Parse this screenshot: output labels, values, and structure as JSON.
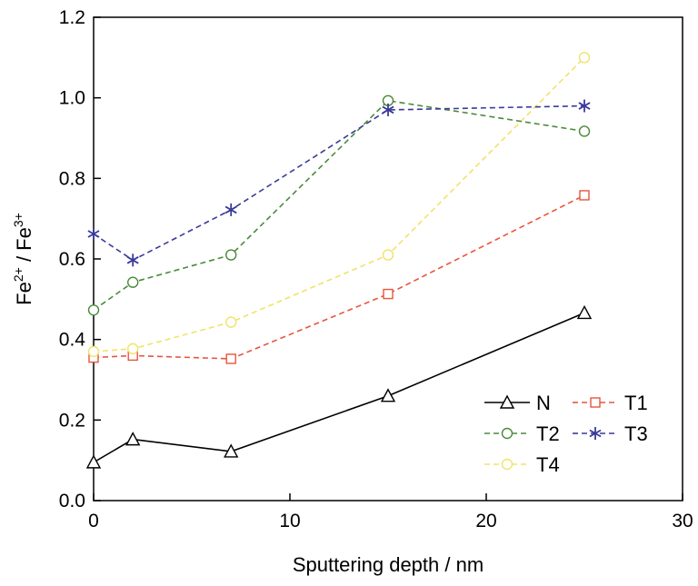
{
  "chart_data": {
    "type": "line",
    "title": "",
    "xlabel": "Sputtering depth / nm",
    "ylabel": {
      "base1": "Fe",
      "sup1": "2+",
      "sep": " / ",
      "base2": "Fe",
      "sup2": "3+"
    },
    "xlim": [
      0,
      30
    ],
    "ylim": [
      0.0,
      1.2
    ],
    "xticks": [
      0,
      10,
      20,
      30
    ],
    "xtick_labels": [
      "0",
      "10",
      "20",
      "30"
    ],
    "yticks": [
      0.0,
      0.2,
      0.4,
      0.6,
      0.8,
      1.0,
      1.2
    ],
    "ytick_labels": [
      "0.0",
      "0.2",
      "0.4",
      "0.6",
      "0.8",
      "1.0",
      "1.2"
    ],
    "grid": false,
    "legend_position": "bottom-right",
    "x": [
      0,
      2,
      7,
      15,
      25
    ],
    "series": [
      {
        "name": "N",
        "values": [
          0.095,
          0.152,
          0.122,
          0.26,
          0.466
        ],
        "color": "#000000",
        "marker": "triangle",
        "dash": "solid"
      },
      {
        "name": "T1",
        "values": [
          0.355,
          0.36,
          0.352,
          0.513,
          0.758
        ],
        "color": "#e8553f",
        "marker": "square",
        "dash": "dashed"
      },
      {
        "name": "T2",
        "values": [
          0.473,
          0.542,
          0.61,
          0.993,
          0.917
        ],
        "color": "#4a8a3a",
        "marker": "circle",
        "dash": "dashed"
      },
      {
        "name": "T3",
        "values": [
          0.662,
          0.597,
          0.722,
          0.97,
          0.98
        ],
        "color": "#3a3a9a",
        "marker": "asterisk",
        "dash": "dashed"
      },
      {
        "name": "T4",
        "values": [
          0.37,
          0.377,
          0.443,
          0.61,
          1.1
        ],
        "color": "#f2e26a",
        "marker": "circle",
        "dash": "dashed"
      }
    ]
  }
}
